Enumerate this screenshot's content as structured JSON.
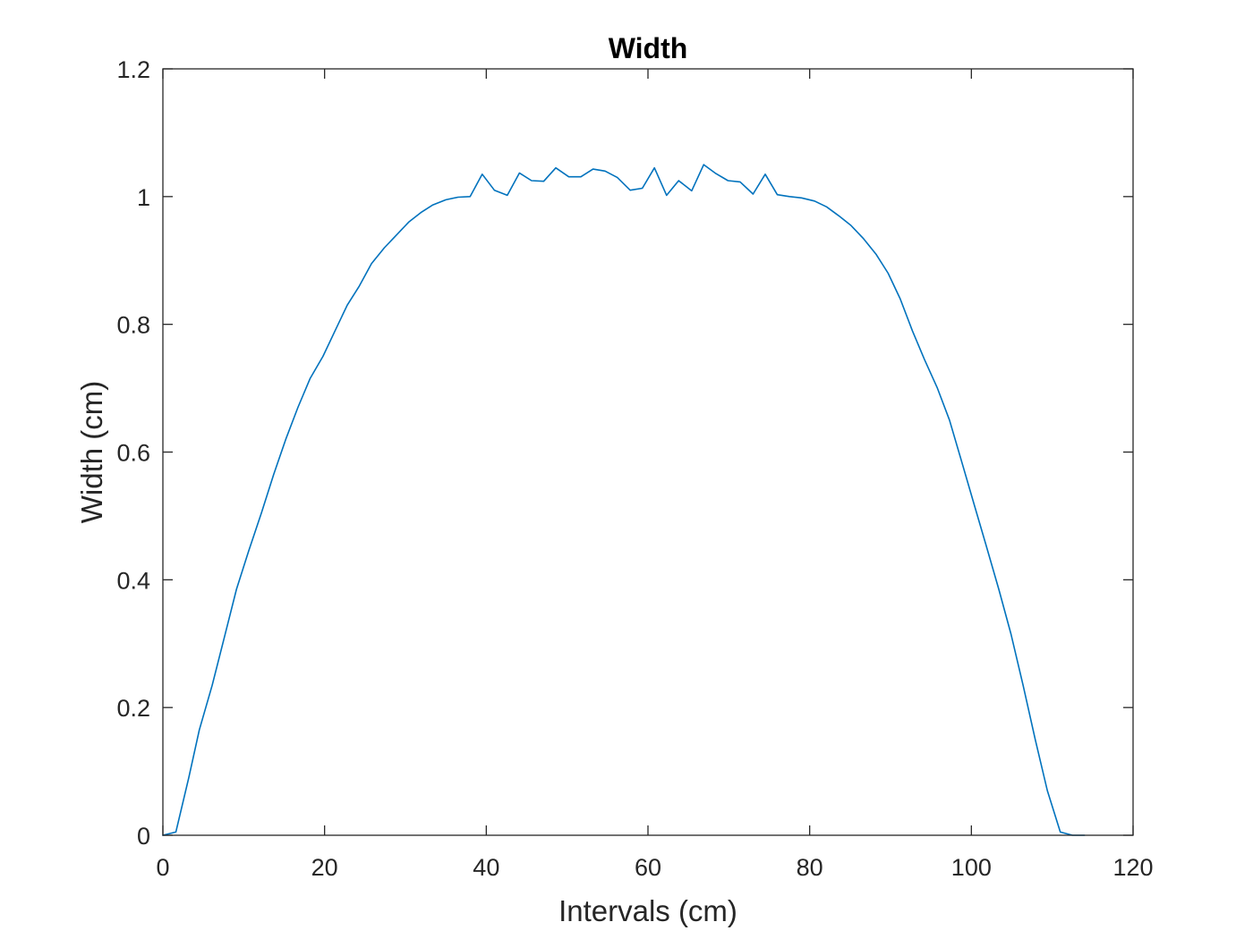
{
  "chart_data": {
    "type": "line",
    "title": "Width",
    "xlabel": "Intervals (cm)",
    "ylabel": "Width (cm)",
    "xlim": [
      0,
      120
    ],
    "ylim": [
      0,
      1.2
    ],
    "xticks": [
      0,
      20,
      40,
      60,
      80,
      100,
      120
    ],
    "yticks": [
      0,
      0.2,
      0.4,
      0.6,
      0.8,
      1,
      1.2
    ],
    "xtick_labels": [
      "0",
      "20",
      "40",
      "60",
      "80",
      "100",
      "120"
    ],
    "ytick_labels": [
      "0",
      "0.2",
      "0.4",
      "0.6",
      "0.8",
      "1",
      "1.2"
    ],
    "grid": false,
    "box": true,
    "colors": {
      "line": "#0072BD",
      "axes": "#262626",
      "background": "#ffffff"
    },
    "series": [
      {
        "x": [
          0,
          1.6,
          3.2,
          4.5,
          6.1,
          7.6,
          9.1,
          10.6,
          12.2,
          13.7,
          15.2,
          16.7,
          18.2,
          19.8,
          21.3,
          22.8,
          24.3,
          25.8,
          27.4,
          28.9,
          30.4,
          31.9,
          33.4,
          35.0,
          36.5,
          38.0,
          39.5,
          41.0,
          42.6,
          44.1,
          45.6,
          47.1,
          48.6,
          50.2,
          51.7,
          53.2,
          54.7,
          56.2,
          57.8,
          59.3,
          60.8,
          62.3,
          63.8,
          65.4,
          66.9,
          68.4,
          69.9,
          71.4,
          73.0,
          74.5,
          76.0,
          77.5,
          79.0,
          80.6,
          82.1,
          83.6,
          85.1,
          86.6,
          88.2,
          89.7,
          91.2,
          92.7,
          94.2,
          95.8,
          97.3,
          98.8,
          100.3,
          101.8,
          103.4,
          104.9,
          106.4,
          107.9,
          109.4,
          111.0,
          112.5,
          114.0
        ],
        "y": [
          0,
          0.005,
          0.09,
          0.165,
          0.235,
          0.31,
          0.385,
          0.445,
          0.505,
          0.565,
          0.62,
          0.67,
          0.715,
          0.75,
          0.79,
          0.83,
          0.86,
          0.895,
          0.92,
          0.94,
          0.96,
          0.975,
          0.987,
          0.995,
          0.999,
          1.0,
          1.035,
          1.01,
          1.002,
          1.037,
          1.025,
          1.024,
          1.045,
          1.031,
          1.031,
          1.043,
          1.04,
          1.03,
          1.01,
          1.013,
          1.045,
          1.002,
          1.025,
          1.009,
          1.05,
          1.036,
          1.025,
          1.023,
          1.004,
          1.035,
          1.003,
          1.0,
          0.998,
          0.993,
          0.984,
          0.97,
          0.955,
          0.935,
          0.91,
          0.88,
          0.84,
          0.79,
          0.745,
          0.7,
          0.65,
          0.585,
          0.52,
          0.455,
          0.385,
          0.315,
          0.235,
          0.15,
          0.07,
          0.005,
          0,
          0
        ]
      }
    ]
  }
}
